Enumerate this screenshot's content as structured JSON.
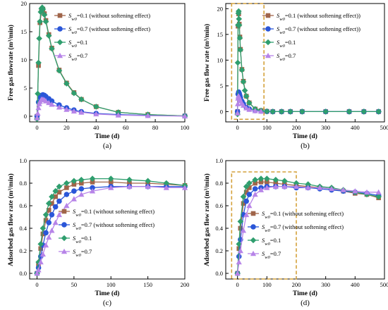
{
  "figure": {
    "panels": [
      "a",
      "b",
      "c",
      "d"
    ]
  },
  "styles": {
    "series_colors": [
      "#a0654a",
      "#2a56d8",
      "#2f9e6e",
      "#b784e8"
    ],
    "series_markers": [
      "square",
      "circle",
      "diamond",
      "triangle"
    ],
    "highlight_box_color": "#d4a13a"
  },
  "chart_data": [
    {
      "id": "a",
      "type": "line",
      "panel_label": "(a)",
      "xlabel": "Time (d)",
      "ylabel": "Free gas flowrate (m³/min)",
      "xlim": [
        -5,
        100
      ],
      "ylim": [
        -1,
        20
      ],
      "xticks": [
        0,
        20,
        40,
        60,
        80,
        100
      ],
      "yticks": [
        0,
        5,
        10,
        15,
        20
      ],
      "legend": {
        "position": "top-right",
        "entries": [
          "Sw0=0.1 (without softening effect)",
          "Sw0=0.7 (without softening effect)",
          "Sw0=0.1",
          "Sw0=0.7"
        ]
      },
      "series": [
        {
          "name": "Sw0=0.1 (without softening effect)",
          "x": [
            0,
            1,
            2,
            3,
            4,
            5,
            6,
            8,
            10,
            15,
            20,
            25,
            30,
            40,
            55,
            75,
            100
          ],
          "y": [
            0,
            9,
            16.6,
            18.6,
            19,
            18.2,
            17,
            14.5,
            12.1,
            8.2,
            5.9,
            4.2,
            3,
            1.7,
            0.7,
            0.3,
            0.05
          ]
        },
        {
          "name": "Sw0=0.7 (without softening effect)",
          "x": [
            0,
            1,
            2,
            3,
            4,
            5,
            6,
            8,
            10,
            15,
            20,
            25,
            30,
            40,
            55,
            75,
            100
          ],
          "y": [
            0,
            2.5,
            3.4,
            3.7,
            3.8,
            3.7,
            3.5,
            3.1,
            2.7,
            2,
            1.5,
            1.1,
            0.8,
            0.5,
            0.3,
            0.15,
            0.05
          ]
        },
        {
          "name": "Sw0=0.1",
          "x": [
            0,
            0.5,
            1,
            1.5,
            2,
            2.5,
            3,
            3.5,
            4,
            5,
            6,
            8,
            10,
            15,
            20,
            25,
            30,
            40,
            55,
            75,
            100
          ],
          "y": [
            -0.5,
            4,
            9.5,
            13.8,
            16.8,
            18.5,
            19.1,
            19.3,
            19,
            18,
            16.8,
            14.3,
            12,
            8.1,
            5.8,
            4.1,
            3,
            1.7,
            0.7,
            0.3,
            0.05
          ]
        },
        {
          "name": "Sw0=0.7",
          "x": [
            0,
            0.5,
            1,
            1.5,
            2,
            3,
            4,
            5,
            6,
            8,
            10,
            15,
            20,
            25,
            30,
            40,
            55,
            75,
            100
          ],
          "y": [
            -0.3,
            0.5,
            1.5,
            2.2,
            2.6,
            3,
            3,
            2.9,
            2.7,
            2.4,
            2.1,
            1.6,
            1.2,
            0.9,
            0.7,
            0.4,
            0.2,
            0.1,
            0.02
          ]
        }
      ]
    },
    {
      "id": "b",
      "type": "line",
      "panel_label": "(b)",
      "xlabel": "Time (d)",
      "ylabel": "Free gas flow rate (m³/min)",
      "xlim": [
        -40,
        500
      ],
      "ylim": [
        -2,
        21
      ],
      "xticks": [
        0,
        100,
        200,
        300,
        400,
        500
      ],
      "yticks": [
        0,
        5,
        10,
        15,
        20
      ],
      "highlight_box": {
        "x": [
          -20,
          90
        ],
        "y": [
          -1.5,
          21
        ]
      },
      "legend": {
        "position": "top-right",
        "entries": [
          "Sw0=0.1 (without softening effect))",
          "Sw0=0.7 (without softening effect))",
          "Sw0=0.1",
          "Sw0=0.7"
        ]
      },
      "series": [
        {
          "name": "Sw0=0.1 (without softening effect))",
          "x": [
            0,
            2,
            4,
            6,
            8,
            10,
            15,
            20,
            30,
            40,
            60,
            80,
            100,
            120,
            150,
            180,
            220,
            300,
            380,
            430,
            480
          ],
          "y": [
            0,
            16.6,
            19,
            17,
            14.5,
            12.1,
            8.2,
            5.9,
            3,
            1.7,
            0.5,
            0.2,
            0.05,
            0,
            0,
            0,
            0,
            0,
            0,
            0,
            0
          ]
        },
        {
          "name": "Sw0=0.7 (without softening effect))",
          "x": [
            0,
            2,
            4,
            6,
            8,
            10,
            15,
            20,
            30,
            40,
            60,
            80,
            100,
            120,
            150,
            180,
            220,
            300,
            380,
            430,
            480
          ],
          "y": [
            0,
            3.4,
            3.8,
            3.5,
            3.1,
            2.7,
            2,
            1.5,
            0.8,
            0.5,
            0.2,
            0.1,
            0.03,
            0,
            0,
            0,
            0,
            0,
            0,
            0,
            0
          ]
        },
        {
          "name": "Sw0=0.1",
          "x": [
            0,
            1,
            2,
            3,
            4,
            5,
            6,
            8,
            10,
            15,
            20,
            25,
            30,
            40,
            60,
            80,
            100,
            120,
            150,
            180,
            220,
            300,
            380,
            430,
            480
          ],
          "y": [
            -0.5,
            9.5,
            16.8,
            19.1,
            19.5,
            18,
            16.8,
            14.3,
            12,
            8.1,
            5.8,
            4.1,
            3,
            1.7,
            0.5,
            0.2,
            0.05,
            0,
            0,
            0,
            0,
            0,
            0,
            0,
            0
          ]
        },
        {
          "name": "Sw0=0.7",
          "x": [
            0,
            1,
            2,
            3,
            4,
            6,
            8,
            10,
            15,
            20,
            30,
            40,
            60,
            80
          ],
          "y": [
            -0.3,
            1.5,
            2.6,
            3,
            3,
            2.7,
            2.4,
            2.1,
            1.6,
            1.2,
            0.7,
            0.4,
            0.15,
            0.05
          ]
        }
      ]
    },
    {
      "id": "c",
      "type": "line",
      "panel_label": "(c)",
      "xlabel": "Time (d)",
      "ylabel": "Adsorbed gas flow rate (m³/min)",
      "xlim": [
        -10,
        200
      ],
      "ylim": [
        -0.05,
        1.0
      ],
      "xticks": [
        0,
        50,
        100,
        150,
        200
      ],
      "yticks": [
        0.0,
        0.2,
        0.4,
        0.6,
        0.8,
        1.0
      ],
      "legend": {
        "position": "bottom-right",
        "entries": [
          "Sw0=0.1 (without softening effect)",
          "Sw0=0.7 (without softening effect)",
          "Sw0=0.1",
          "Sw0=0.7"
        ]
      },
      "series": [
        {
          "name": "Sw0=0.1 (without softening effect)",
          "x": [
            0,
            2,
            5,
            8,
            12,
            16,
            20,
            25,
            30,
            40,
            50,
            60,
            75,
            100,
            125,
            150,
            175,
            200
          ],
          "y": [
            0,
            0.08,
            0.22,
            0.35,
            0.47,
            0.56,
            0.62,
            0.68,
            0.72,
            0.76,
            0.79,
            0.8,
            0.81,
            0.81,
            0.8,
            0.8,
            0.79,
            0.78
          ]
        },
        {
          "name": "Sw0=0.7 (without softening effect)",
          "x": [
            0,
            2,
            5,
            8,
            12,
            16,
            20,
            25,
            30,
            40,
            50,
            60,
            75,
            100,
            125,
            150,
            175,
            200
          ],
          "y": [
            0,
            0.05,
            0.15,
            0.25,
            0.36,
            0.45,
            0.52,
            0.59,
            0.64,
            0.7,
            0.73,
            0.75,
            0.76,
            0.77,
            0.77,
            0.77,
            0.77,
            0.77
          ]
        },
        {
          "name": "Sw0=0.1",
          "x": [
            0,
            2,
            5,
            8,
            12,
            16,
            20,
            25,
            30,
            40,
            50,
            60,
            75,
            100,
            125,
            150,
            175,
            200
          ],
          "y": [
            0,
            0.1,
            0.26,
            0.4,
            0.52,
            0.62,
            0.68,
            0.73,
            0.77,
            0.8,
            0.82,
            0.83,
            0.84,
            0.84,
            0.83,
            0.82,
            0.8,
            0.78
          ]
        },
        {
          "name": "Sw0=0.7",
          "x": [
            0,
            2,
            5,
            8,
            12,
            16,
            20,
            25,
            30,
            40,
            50,
            60,
            75,
            100,
            125,
            150,
            175,
            200
          ],
          "y": [
            0,
            0.03,
            0.1,
            0.17,
            0.25,
            0.32,
            0.38,
            0.45,
            0.52,
            0.6,
            0.66,
            0.7,
            0.73,
            0.76,
            0.77,
            0.77,
            0.76,
            0.76
          ]
        }
      ]
    },
    {
      "id": "d",
      "type": "line",
      "panel_label": "(d)",
      "xlabel": "Time (d)",
      "ylabel": "Adsorbed gas flow rate (m³/min)",
      "xlim": [
        -40,
        500
      ],
      "ylim": [
        -0.05,
        1.0
      ],
      "xticks": [
        0,
        100,
        200,
        300,
        400,
        500
      ],
      "yticks": [
        0.0,
        0.2,
        0.4,
        0.6,
        0.8,
        1.0
      ],
      "highlight_box": {
        "x": [
          -20,
          200
        ],
        "y": [
          -0.05,
          0.9
        ]
      },
      "legend": {
        "position": "bottom-right",
        "entries": [
          "Sw0=0.1 (without softening effect)",
          "Sw0=0.7 (without softening effect)",
          "Sw0=0.1",
          "Sw0=0.7"
        ]
      },
      "series": [
        {
          "name": "Sw0=0.1 (without softening effect)",
          "x": [
            0,
            5,
            10,
            20,
            30,
            40,
            60,
            80,
            100,
            130,
            160,
            200,
            240,
            280,
            320,
            360,
            400,
            440,
            480
          ],
          "y": [
            0,
            0.22,
            0.4,
            0.62,
            0.72,
            0.76,
            0.8,
            0.81,
            0.81,
            0.8,
            0.79,
            0.78,
            0.77,
            0.76,
            0.75,
            0.73,
            0.71,
            0.7,
            0.67
          ]
        },
        {
          "name": "Sw0=0.7 (without softening effect)",
          "x": [
            0,
            5,
            10,
            20,
            30,
            40,
            60,
            80,
            100,
            130,
            160,
            200,
            240,
            280,
            320,
            360,
            400,
            440,
            480
          ],
          "y": [
            0,
            0.15,
            0.3,
            0.52,
            0.64,
            0.7,
            0.75,
            0.76,
            0.77,
            0.77,
            0.77,
            0.76,
            0.76,
            0.75,
            0.74,
            0.73,
            0.72,
            0.71,
            0.69
          ]
        },
        {
          "name": "Sw0=0.1",
          "x": [
            0,
            5,
            10,
            20,
            30,
            40,
            60,
            80,
            100,
            130,
            160,
            200,
            240,
            280,
            320,
            360,
            400,
            440,
            480
          ],
          "y": [
            0,
            0.26,
            0.46,
            0.68,
            0.77,
            0.8,
            0.83,
            0.84,
            0.84,
            0.83,
            0.82,
            0.8,
            0.79,
            0.77,
            0.76,
            0.74,
            0.72,
            0.7,
            0.68
          ]
        },
        {
          "name": "Sw0=0.7",
          "x": [
            0,
            5,
            10,
            20,
            30,
            40,
            60,
            80,
            100,
            130,
            160,
            200,
            240,
            280,
            320,
            360,
            400,
            440,
            480
          ],
          "y": [
            0,
            0.1,
            0.2,
            0.38,
            0.52,
            0.6,
            0.7,
            0.74,
            0.76,
            0.77,
            0.77,
            0.77,
            0.76,
            0.76,
            0.75,
            0.74,
            0.73,
            0.72,
            0.72
          ]
        }
      ]
    }
  ]
}
